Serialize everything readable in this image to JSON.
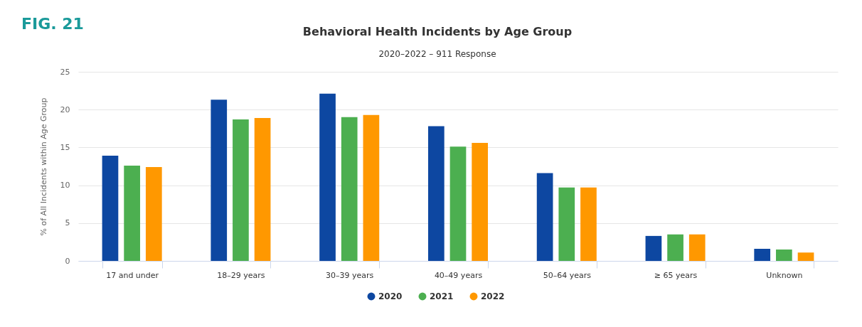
{
  "chart_data": {
    "type": "bar",
    "title": "Behavioral Health Incidents by Age Group",
    "subtitle": "2020–2022 – 911 Response",
    "ylabel": "% of All Incidents within Age Group",
    "categories": [
      "17 and under",
      "18–29 years",
      "30–39 years",
      "40–49 years",
      "50–64 years",
      "≥ 65 years",
      "Unknown"
    ],
    "series": [
      {
        "name": "2020",
        "color": "#0d47a1",
        "values": [
          13.9,
          21.3,
          22.1,
          17.8,
          11.6,
          3.3,
          1.6
        ]
      },
      {
        "name": "2021",
        "color": "#4caf50",
        "values": [
          12.6,
          18.7,
          19.0,
          15.1,
          9.7,
          3.5,
          1.5
        ]
      },
      {
        "name": "2022",
        "color": "#ff9800",
        "values": [
          12.4,
          18.9,
          19.3,
          15.6,
          9.7,
          3.5,
          1.1
        ]
      }
    ],
    "ylim": [
      0,
      25
    ],
    "yticks": [
      0,
      5,
      10,
      15,
      20,
      25
    ],
    "grid": "y",
    "legend": "bottom",
    "annotations": [
      "FIG. 21"
    ]
  }
}
